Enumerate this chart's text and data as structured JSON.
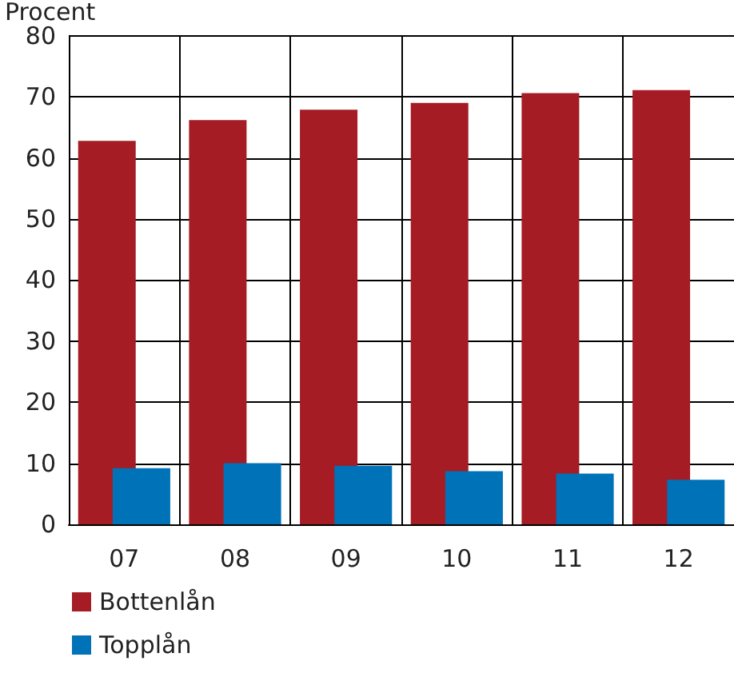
{
  "chart_data": {
    "type": "bar",
    "ylabel": "Procent",
    "categories": [
      "07",
      "08",
      "09",
      "10",
      "11",
      "12"
    ],
    "series": [
      {
        "name": "Bottenlån",
        "color": "#a51c24",
        "values": [
          62.8,
          66.2,
          67.9,
          69.0,
          70.6,
          71.1
        ]
      },
      {
        "name": "Topplån",
        "color": "#0072b8",
        "values": [
          9.2,
          10.0,
          9.6,
          8.7,
          8.3,
          7.3
        ]
      }
    ],
    "ylim": [
      0,
      80
    ],
    "yticks": [
      0,
      10,
      20,
      30,
      40,
      50,
      60,
      70,
      80
    ],
    "grid": true,
    "legend": "bottom left"
  }
}
